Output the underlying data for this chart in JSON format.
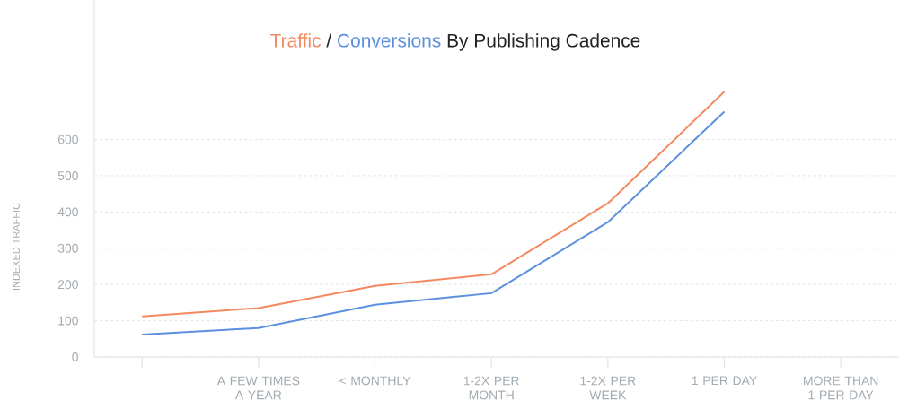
{
  "chart_data": {
    "type": "line",
    "title": "By Publishing Cadence",
    "ylabel": "INDEXED TRAFFIC",
    "annotations": [
      "/"
    ],
    "categories": [
      null,
      "A FEW TIMES A YEAR",
      "< MONTHLY",
      "1-2X PER MONTH",
      "1-2X PER WEEK",
      "1 PER DAY",
      "MORE THAN 1 PER DAY"
    ],
    "series": [
      {
        "name": "Traffic",
        "color": "#f4895f",
        "values": [
          112,
          135,
          196,
          228,
          424,
          732,
          null
        ]
      },
      {
        "name": "Conversions",
        "color": "#5b8fe0",
        "values": [
          62,
          80,
          144,
          176,
          372,
          677,
          null
        ]
      }
    ],
    "ylim": [
      0,
      985
    ],
    "yticks": [
      0,
      100,
      200,
      300,
      400,
      500,
      600
    ],
    "grid": "y",
    "line_style": "solid",
    "marker": "none"
  }
}
